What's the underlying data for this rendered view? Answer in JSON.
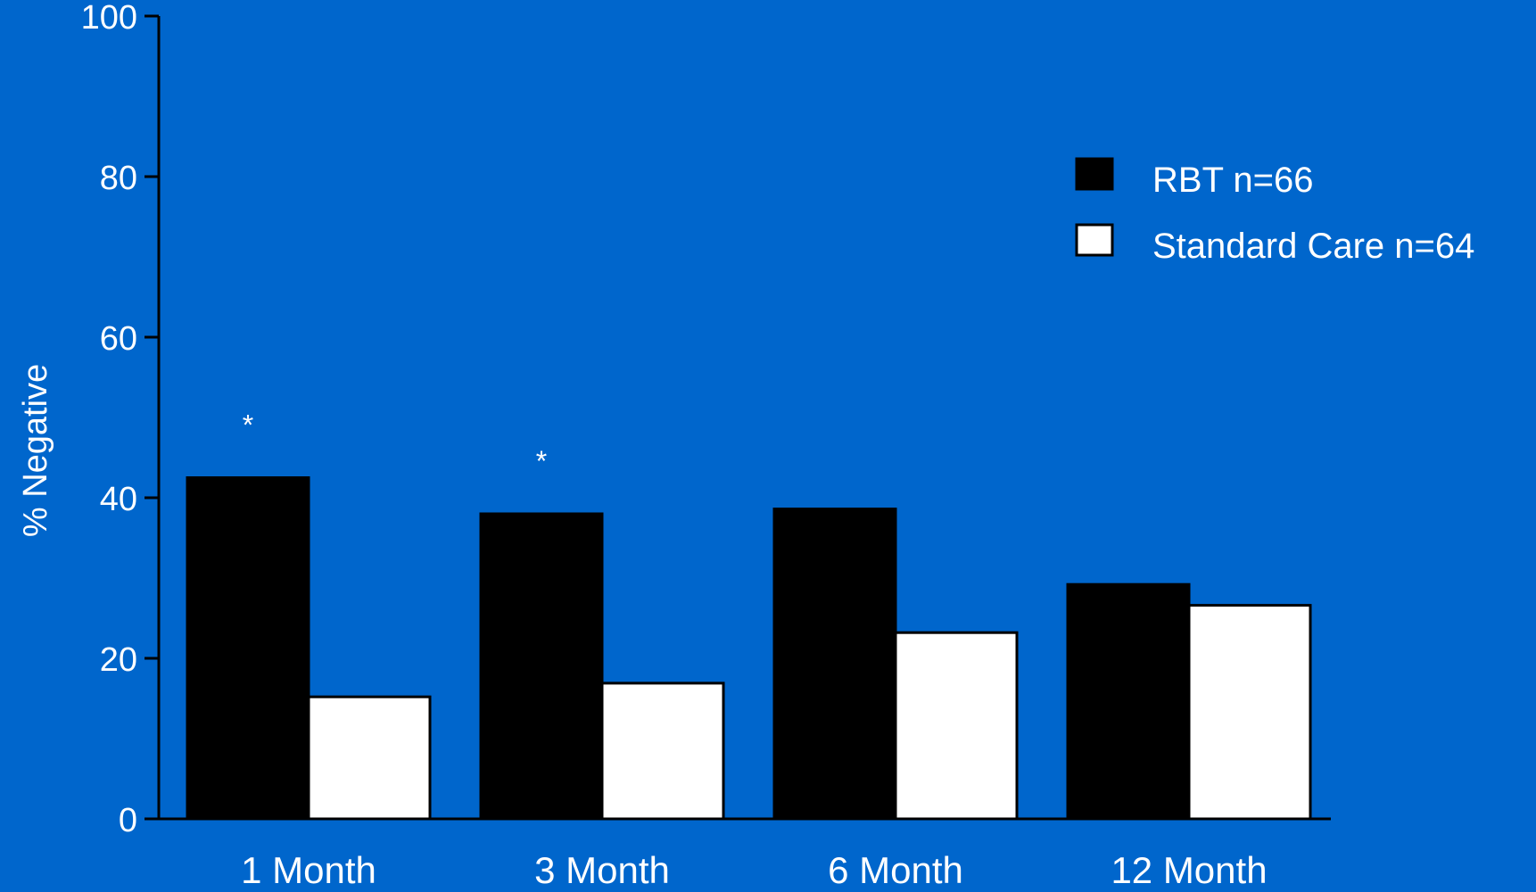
{
  "background_color": "#0066CC",
  "chart_data": {
    "type": "bar",
    "ylabel": "% Negative",
    "xlabel": "",
    "ylim": [
      0,
      100
    ],
    "yticks": [
      0,
      20,
      40,
      60,
      80,
      100
    ],
    "categories": [
      "1 Month",
      "3 Month",
      "6 Month",
      "12 Month"
    ],
    "series": [
      {
        "name": "RBT n=66",
        "values": [
          42.5,
          38,
          38.6,
          29.2
        ],
        "color": "#000000"
      },
      {
        "name": "Standard Care n=64",
        "values": [
          15.2,
          16.9,
          23.2,
          26.6
        ],
        "color": "#FFFFFF"
      }
    ],
    "annotations": [
      {
        "category": "1 Month",
        "text": "*"
      },
      {
        "category": "3 Month",
        "text": "*"
      }
    ],
    "legend_position": "top-right",
    "grid": false
  }
}
